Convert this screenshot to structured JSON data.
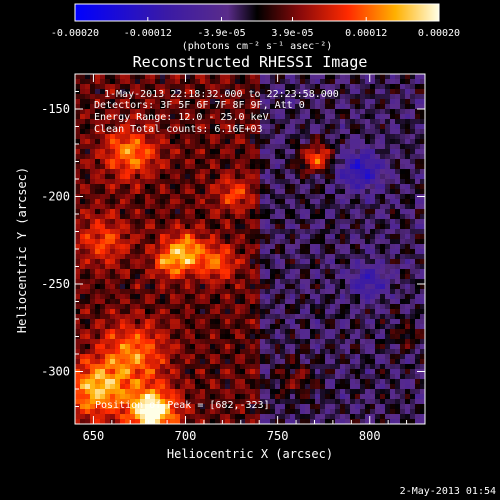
{
  "chart_data": {
    "type": "heatmap",
    "title": "Reconstructed RHESSI Image",
    "xlabel": "Heliocentric X (arcsec)",
    "ylabel": "Heliocentric Y (arcsec)",
    "x_ticks": [
      "650",
      "700",
      "750",
      "800"
    ],
    "y_ticks": [
      "-150",
      "-200",
      "-250",
      "-300"
    ],
    "xlim": [
      640,
      830
    ],
    "ylim": [
      -330,
      -130
    ],
    "colorbar": {
      "range": [
        -0.0002,
        0.0002
      ],
      "tick_labels": [
        "-0.00020",
        "-0.00012",
        "-3.9e-05",
        "3.9e-05",
        "0.00012",
        "0.00020"
      ],
      "unit_label": "(photons cm⁻² s⁻¹ asec⁻²)"
    },
    "annotations": [
      "1-May-2013 22:18:32.000 to 22:23:58.000",
      "Detectors: 3F 5F 6F 7F 8F 9F, Att 0",
      "Energy Range: 12.0 - 25.0 keV",
      "Clean    Total counts: 6.16E+03"
    ],
    "peak_label": "Position of Peak = [682,-323]",
    "peak_position": [
      682,
      -323
    ],
    "sources": [
      {
        "x": 682,
        "y": -323,
        "amplitude": 0.000195,
        "sigma": 9
      },
      {
        "x": 652,
        "y": -310,
        "amplitude": 0.00013,
        "sigma": 11
      },
      {
        "x": 672,
        "y": -290,
        "amplitude": 0.0001,
        "sigma": 12
      },
      {
        "x": 700,
        "y": -232,
        "amplitude": 0.00012,
        "sigma": 8
      },
      {
        "x": 718,
        "y": -238,
        "amplitude": 8e-05,
        "sigma": 7
      },
      {
        "x": 690,
        "y": -238,
        "amplitude": 7e-05,
        "sigma": 6
      },
      {
        "x": 670,
        "y": -175,
        "amplitude": 0.0001,
        "sigma": 10
      },
      {
        "x": 655,
        "y": -225,
        "amplitude": 7e-05,
        "sigma": 10
      },
      {
        "x": 771,
        "y": -178,
        "amplitude": 0.00013,
        "sigma": 6
      },
      {
        "x": 727,
        "y": -198,
        "amplitude": 7e-05,
        "sigma": 7
      },
      {
        "x": 795,
        "y": -185,
        "amplitude": -0.00011,
        "sigma": 8
      },
      {
        "x": 800,
        "y": -248,
        "amplitude": -8e-05,
        "sigma": 7
      },
      {
        "x": 760,
        "y": -305,
        "amplitude": 5e-05,
        "sigma": 8
      },
      {
        "x": 820,
        "y": -280,
        "amplitude": 4e-05,
        "sigma": 6
      }
    ]
  },
  "footer": {
    "timestamp": "2-May-2013 01:54"
  }
}
